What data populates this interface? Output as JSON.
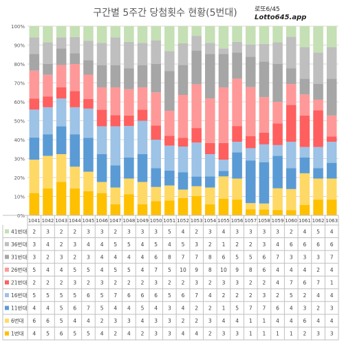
{
  "title": "구간별 5주간 당첨횟수 현황(5번대)",
  "brand": {
    "line1": "로또6/45",
    "line2": "Lotto645.app"
  },
  "chart_data": {
    "type": "bar",
    "stacked": "percent",
    "ylim": [
      0,
      100
    ],
    "yticks": [
      "0%",
      "10%",
      "20%",
      "30%",
      "40%",
      "50%",
      "60%",
      "70%",
      "80%",
      "90%",
      "100%"
    ],
    "grid": true,
    "categories": [
      "1041",
      "1042",
      "1043",
      "1044",
      "1045",
      "1046",
      "1047",
      "1048",
      "1049",
      "1050",
      "1051",
      "1052",
      "1053",
      "1054",
      "1055",
      "1056",
      "1057",
      "1058",
      "1059",
      "1060",
      "1061",
      "1062",
      "1063"
    ],
    "series": [
      {
        "name": "1번대",
        "color": "#FFC000",
        "values": [
          4,
          5,
          6,
          5,
          5,
          4,
          2,
          4,
          2,
          3,
          3,
          4,
          4,
          2,
          3,
          3,
          1,
          1,
          1,
          1,
          2,
          3,
          3
        ]
      },
      {
        "name": "6번대",
        "color": "#FFD966",
        "values": [
          6,
          6,
          5,
          4,
          4,
          2,
          3,
          3,
          4,
          3,
          3,
          2,
          2,
          3,
          4,
          4,
          1,
          1,
          4,
          4,
          6,
          4,
          4
        ]
      },
      {
        "name": "11번대",
        "color": "#5B9BD5",
        "values": [
          4,
          4,
          5,
          6,
          7,
          5,
          4,
          4,
          5,
          4,
          3,
          4,
          2,
          2,
          1,
          5,
          7,
          7,
          6,
          4,
          3,
          2,
          3
        ]
      },
      {
        "name": "16번대",
        "color": "#9DC3E6",
        "values": [
          5,
          5,
          5,
          5,
          6,
          5,
          7,
          6,
          6,
          6,
          5,
          6,
          7,
          4,
          2,
          2,
          2,
          3,
          2,
          5,
          2,
          4,
          4
        ]
      },
      {
        "name": "21번대",
        "color": "#FF5F5F",
        "values": [
          2,
          2,
          2,
          3,
          2,
          3,
          2,
          2,
          2,
          3,
          2,
          2,
          3,
          2,
          3,
          3,
          2,
          2,
          4,
          7,
          6,
          7,
          1
        ]
      },
      {
        "name": "26번대",
        "color": "#FF9999",
        "values": [
          5,
          4,
          4,
          5,
          5,
          4,
          5,
          5,
          4,
          7,
          5,
          10,
          9,
          8,
          10,
          9,
          8,
          6,
          4,
          4,
          4,
          2,
          4
        ]
      },
      {
        "name": "31번대",
        "color": "#A6A6A6",
        "values": [
          3,
          2,
          3,
          2,
          3,
          4,
          4,
          4,
          4,
          6,
          8,
          7,
          7,
          8,
          6,
          5,
          5,
          6,
          7,
          3,
          3,
          3,
          7
        ]
      },
      {
        "name": "36번대",
        "color": "#BFBFBF",
        "values": [
          3,
          4,
          2,
          3,
          4,
          4,
          5,
          5,
          4,
          5,
          4,
          5,
          3,
          2,
          1,
          2,
          2,
          3,
          4,
          6,
          6,
          6,
          6
        ]
      },
      {
        "name": "41번대",
        "color": "#C5E0B4",
        "values": [
          2,
          3,
          2,
          2,
          3,
          3,
          2,
          3,
          3,
          3,
          5,
          4,
          2,
          3,
          4,
          3,
          3,
          3,
          3,
          2,
          4,
          5,
          4
        ]
      }
    ]
  }
}
